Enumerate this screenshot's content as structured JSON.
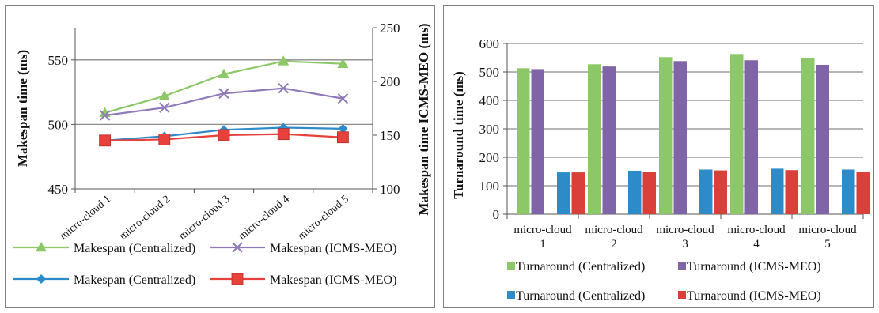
{
  "chart_data": [
    {
      "type": "line",
      "categories": [
        "micro-cloud 1",
        "micro-cloud 2",
        "micro-cloud 3",
        "micro-cloud 4",
        "micro-cloud 5"
      ],
      "ylabel": "Makespan time (ms)",
      "y2label": "Makespan time ICMS-MEO (ms)",
      "ylim": [
        450,
        575
      ],
      "yticks": [
        450,
        500,
        550
      ],
      "y2lim": [
        100,
        250
      ],
      "y2ticks": [
        100,
        150,
        200,
        250
      ],
      "grid": "horizontal major lines",
      "legend_position": "bottom",
      "series": [
        {
          "name": "Makespan (Centralized)",
          "axis": "left",
          "marker": "triangle",
          "color": "#8CC868",
          "values": [
            509,
            522,
            539,
            549,
            547
          ]
        },
        {
          "name": "Makespan (ICMS-MEO)",
          "axis": "left",
          "marker": "x",
          "color": "#9079B8",
          "values": [
            507,
            513,
            524,
            528,
            520
          ]
        },
        {
          "name": "Makespan (Centralized)",
          "axis": "right",
          "marker": "diamond",
          "color": "#2E8BC9",
          "values": [
            145,
            149,
            155,
            157,
            156
          ]
        },
        {
          "name": "Makespan (ICMS-MEO)",
          "axis": "right",
          "marker": "square",
          "color": "#E8413C",
          "values": [
            145,
            146,
            150,
            151,
            148
          ]
        }
      ]
    },
    {
      "type": "bar",
      "categories": [
        [
          "micro-cloud",
          "1"
        ],
        [
          "micro-cloud",
          "2"
        ],
        [
          "micro-cloud",
          "3"
        ],
        [
          "micro-cloud",
          "4"
        ],
        [
          "micro-cloud",
          "5"
        ]
      ],
      "ylabel": "Turnaround time (ms)",
      "ylim": [
        0,
        600
      ],
      "yticks": [
        0,
        100,
        200,
        300,
        400,
        500,
        600
      ],
      "grid": "horizontal major lines",
      "legend_position": "bottom",
      "series": [
        {
          "name": "Turnaround (Centralized)",
          "color": "#8CC868",
          "values": [
            513,
            527,
            552,
            563,
            550
          ]
        },
        {
          "name": "Turnaround (ICMS-MEO)",
          "color": "#8064A8",
          "values": [
            510,
            519,
            538,
            541,
            525
          ]
        },
        {
          "name": "Turnaround (Centralized)",
          "color": "#2E8BC9",
          "values": [
            147,
            153,
            157,
            160,
            157
          ]
        },
        {
          "name": "Turnaround (ICMS-MEO)",
          "color": "#D9403A",
          "values": [
            147,
            150,
            154,
            155,
            150
          ]
        }
      ]
    }
  ]
}
